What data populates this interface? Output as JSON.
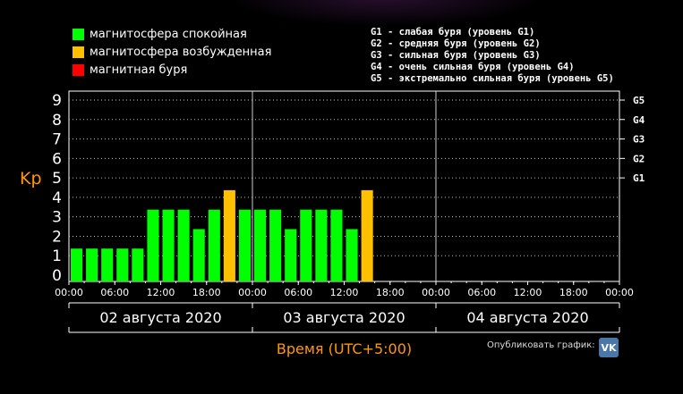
{
  "legend": [
    {
      "label": "магнитосфера спокойная",
      "color": "#00ff00"
    },
    {
      "label": "магнитосфера возбужденная",
      "color": "#ffc000"
    },
    {
      "label": "магнитная буря",
      "color": "#ff0000"
    }
  ],
  "g_levels": [
    "G1 - слабая буря (уровень G1)",
    "G2 - средняя буря (уровень G2)",
    "G3 - сильная буря (уровень G3)",
    "G4 - очень сильная буря (уровень G4)",
    "G5 - экстремально сильная буря (уровень G5)"
  ],
  "publish_label": "Опубликовать график:",
  "vk_icon": "vk-icon",
  "chart_data": {
    "type": "bar",
    "ylabel": "Kp",
    "xlabel": "Время (UTC+5:00)",
    "ylim": [
      0,
      9
    ],
    "yticks": [
      "0",
      "1",
      "2",
      "3",
      "4",
      "5",
      "6",
      "7",
      "8",
      "9"
    ],
    "right_ticks": [
      {
        "label": "G1",
        "at": 5
      },
      {
        "label": "G2",
        "at": 6
      },
      {
        "label": "G3",
        "at": 7
      },
      {
        "label": "G4",
        "at": 8
      },
      {
        "label": "G5",
        "at": 9
      }
    ],
    "xticks": [
      "00:00",
      "06:00",
      "12:00",
      "18:00",
      "00:00",
      "06:00",
      "12:00",
      "18:00",
      "00:00",
      "06:00",
      "12:00",
      "18:00",
      "00:00"
    ],
    "days": [
      "02 августа 2020",
      "03 августа 2020",
      "04 августа 2020"
    ],
    "grid": true,
    "values": [
      1,
      1,
      1,
      1,
      1,
      3,
      3,
      3,
      2,
      3,
      4,
      3,
      3,
      3,
      2,
      3,
      3,
      3,
      2,
      4
    ],
    "colors": {
      "quiet": "#00ff00",
      "disturbed": "#ffc000",
      "storm": "#ff0000"
    }
  }
}
